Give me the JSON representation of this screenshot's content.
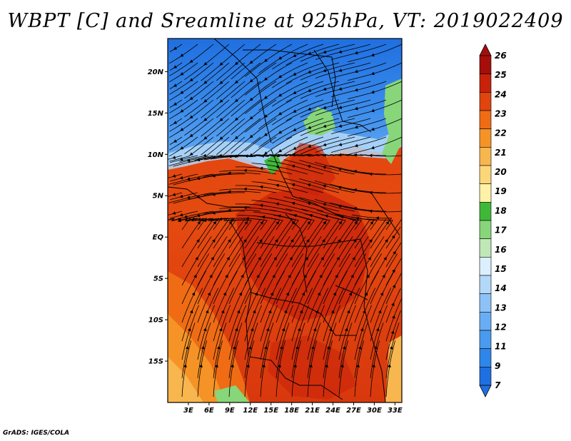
{
  "chart_data": {
    "type": "heatmap",
    "title": "WBPT [C] and Sreamline at 925hPa, VT: 2019022409",
    "variable": "Wet-bulb potential temperature",
    "units": "C",
    "overlay": "streamlines",
    "level": "925hPa",
    "valid_time": "2019022409",
    "lon_range": [
      0,
      34
    ],
    "lat_range": [
      -20,
      24
    ],
    "x_ticks": [
      3,
      6,
      9,
      12,
      15,
      18,
      21,
      24,
      27,
      30,
      33
    ],
    "x_tick_labels": [
      "3E",
      "6E",
      "9E",
      "12E",
      "15E",
      "18E",
      "21E",
      "24E",
      "27E",
      "30E",
      "33E"
    ],
    "y_ticks": [
      20,
      15,
      10,
      5,
      0,
      -5,
      -10,
      -15
    ],
    "y_tick_labels": [
      "20N",
      "15N",
      "10N",
      "5N",
      "EQ",
      "5S",
      "10S",
      "15S"
    ],
    "colorbar": {
      "levels": [
        7,
        9,
        11,
        12,
        13,
        14,
        15,
        16,
        17,
        18,
        19,
        20,
        21,
        22,
        23,
        24,
        25,
        26
      ],
      "labels": [
        "7",
        "9",
        "11",
        "12",
        "13",
        "14",
        "15",
        "16",
        "17",
        "18",
        "19",
        "20",
        "21",
        "22",
        "23",
        "24",
        "25",
        "26"
      ],
      "colors": [
        "#1f6fe0",
        "#2f86ea",
        "#4a9bf0",
        "#69aef4",
        "#8cc2f6",
        "#b4d8f8",
        "#dcefff",
        "#bfe8b6",
        "#88d67a",
        "#3fb83a",
        "#fff1a8",
        "#fcd77a",
        "#f8b64f",
        "#f59327",
        "#ef6c15",
        "#e0440f",
        "#c8220b",
        "#a50e0a"
      ]
    }
  },
  "credit": "GrADS: IGES/COLA"
}
